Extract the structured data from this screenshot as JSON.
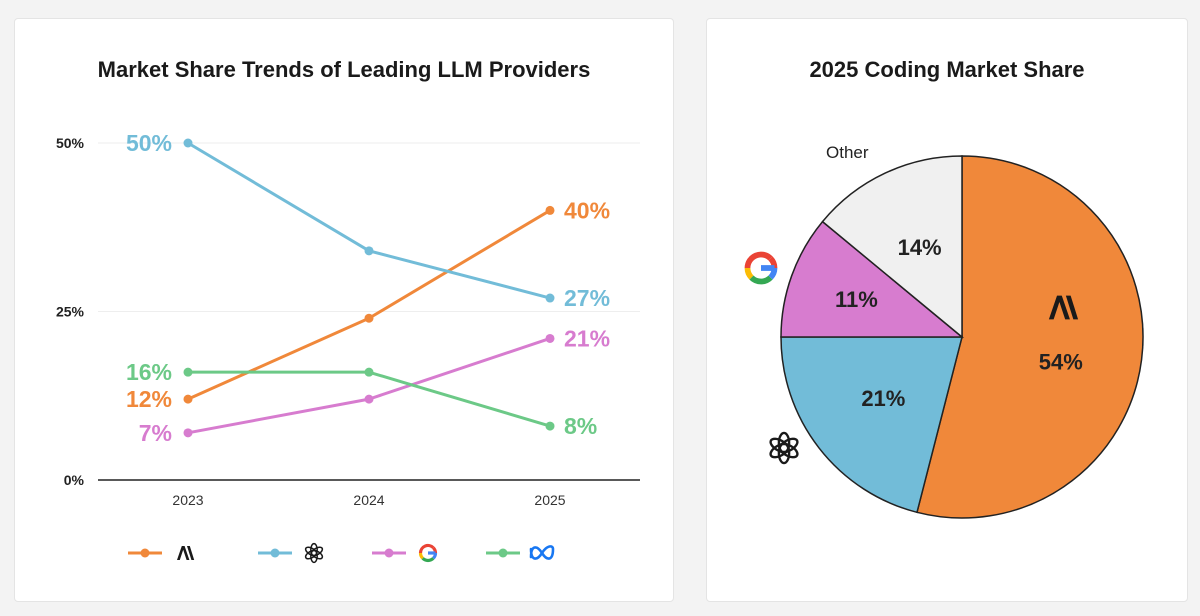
{
  "colors": {
    "anthropic": "#f0883a",
    "openai": "#72bcd8",
    "google": "#d77ccf",
    "meta": "#6cc987",
    "other": "#f0f0f0",
    "google_g_blue": "#4285F4",
    "google_g_red": "#EA4335",
    "google_g_yellow": "#FBBC05",
    "google_g_green": "#34A853",
    "meta_blue": "#1877f2"
  },
  "chart_data": [
    {
      "type": "line",
      "title": "Market Share Trends of Leading LLM Providers",
      "x": [
        "2023",
        "2024",
        "2025"
      ],
      "ylim": [
        0,
        50
      ],
      "yticks": [
        0,
        25,
        50
      ],
      "ytick_labels": [
        "0%",
        "25%",
        "50%"
      ],
      "grid": true,
      "legend_position": "bottom",
      "series": [
        {
          "key": "anthropic",
          "icon": "anthropic-logo-icon",
          "values": [
            12,
            24,
            40
          ],
          "start_label": "12%",
          "end_label": "40%"
        },
        {
          "key": "openai",
          "icon": "openai-logo-icon",
          "values": [
            50,
            34,
            27
          ],
          "start_label": "50%",
          "end_label": "27%"
        },
        {
          "key": "google",
          "icon": "google-logo-icon",
          "values": [
            7,
            12,
            21
          ],
          "start_label": "7%",
          "end_label": "21%"
        },
        {
          "key": "meta",
          "icon": "meta-logo-icon",
          "values": [
            16,
            16,
            8
          ],
          "start_label": "16%",
          "end_label": "8%"
        }
      ]
    },
    {
      "type": "pie",
      "title": "2025 Coding Market Share",
      "slices": [
        {
          "key": "anthropic",
          "value": 54,
          "label": "54%",
          "icon": "anthropic-logo-icon"
        },
        {
          "key": "openai",
          "value": 21,
          "label": "21%",
          "icon": "openai-logo-icon"
        },
        {
          "key": "google",
          "value": 11,
          "label": "11%",
          "icon": "google-logo-icon"
        },
        {
          "key": "other",
          "value": 14,
          "label": "14%",
          "name": "Other"
        }
      ]
    }
  ]
}
